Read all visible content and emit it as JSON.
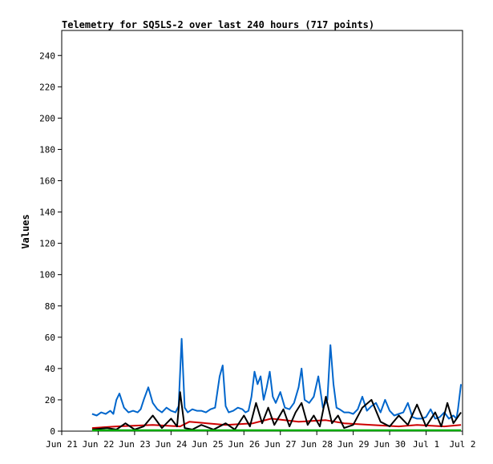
{
  "chart_data": {
    "type": "line",
    "title": "Telemetry for SQ5LS-2 over last 240 hours (717 points)",
    "xlabel": "",
    "ylabel": "Values",
    "ylim": [
      0,
      256
    ],
    "yticks": [
      0,
      20,
      40,
      60,
      80,
      100,
      120,
      140,
      160,
      180,
      200,
      220,
      240
    ],
    "xlim": [
      "2024-06-21T00:00",
      "2024-07-02T00:00"
    ],
    "xticks": [
      {
        "date": "2024-06-21T00:00",
        "label": "Jun 21"
      },
      {
        "date": "2024-06-22T00:00",
        "label": "Jun 22"
      },
      {
        "date": "2024-06-23T00:00",
        "label": "Jun 23"
      },
      {
        "date": "2024-06-24T00:00",
        "label": "Jun 24"
      },
      {
        "date": "2024-06-25T00:00",
        "label": "Jun 25"
      },
      {
        "date": "2024-06-26T00:00",
        "label": "Jun 26"
      },
      {
        "date": "2024-06-27T00:00",
        "label": "Jun 27"
      },
      {
        "date": "2024-06-28T00:00",
        "label": "Jun 28"
      },
      {
        "date": "2024-06-29T00:00",
        "label": "Jun 29"
      },
      {
        "date": "2024-06-30T00:00",
        "label": "Jun 30"
      },
      {
        "date": "2024-07-01T00:00",
        "label": "Jul 1"
      },
      {
        "date": "2024-07-02T00:00",
        "label": "Jul 2"
      }
    ],
    "grid": false,
    "legend": "none",
    "series": [
      {
        "color": "#0066cc",
        "x": [
          "2024-06-21T20:00",
          "2024-06-21T23:00",
          "2024-06-22T02:00",
          "2024-06-22T05:00",
          "2024-06-22T08:00",
          "2024-06-22T10:00",
          "2024-06-22T12:00",
          "2024-06-22T14:00",
          "2024-06-22T17:00",
          "2024-06-22T20:00",
          "2024-06-22T23:00",
          "2024-06-23T02:00",
          "2024-06-23T04:00",
          "2024-06-23T06:00",
          "2024-06-23T09:00",
          "2024-06-23T12:00",
          "2024-06-23T15:00",
          "2024-06-23T18:00",
          "2024-06-23T21:00",
          "2024-06-24T00:00",
          "2024-06-24T03:00",
          "2024-06-24T05:00",
          "2024-06-24T07:00",
          "2024-06-24T09:00",
          "2024-06-24T11:00",
          "2024-06-24T14:00",
          "2024-06-24T17:00",
          "2024-06-24T20:00",
          "2024-06-24T23:00",
          "2024-06-25T02:00",
          "2024-06-25T05:00",
          "2024-06-25T08:00",
          "2024-06-25T10:00",
          "2024-06-25T12:00",
          "2024-06-25T14:00",
          "2024-06-25T17:00",
          "2024-06-25T20:00",
          "2024-06-25T23:00",
          "2024-06-26T01:00",
          "2024-06-26T03:00",
          "2024-06-26T05:00",
          "2024-06-26T07:00",
          "2024-06-26T09:00",
          "2024-06-26T11:00",
          "2024-06-26T13:00",
          "2024-06-26T15:00",
          "2024-06-26T17:00",
          "2024-06-26T19:00",
          "2024-06-26T21:00",
          "2024-06-27T00:00",
          "2024-06-27T03:00",
          "2024-06-27T06:00",
          "2024-06-27T09:00",
          "2024-06-27T12:00",
          "2024-06-27T14:00",
          "2024-06-27T16:00",
          "2024-06-27T19:00",
          "2024-06-27T22:00",
          "2024-06-28T01:00",
          "2024-06-28T04:00",
          "2024-06-28T07:00",
          "2024-06-28T09:00",
          "2024-06-28T11:00",
          "2024-06-28T13:00",
          "2024-06-28T15:00",
          "2024-06-28T18:00",
          "2024-06-28T21:00",
          "2024-06-29T00:00",
          "2024-06-29T03:00",
          "2024-06-29T06:00",
          "2024-06-29T09:00",
          "2024-06-29T12:00",
          "2024-06-29T15:00",
          "2024-06-29T18:00",
          "2024-06-29T21:00",
          "2024-06-30T00:00",
          "2024-06-30T03:00",
          "2024-06-30T06:00",
          "2024-06-30T09:00",
          "2024-06-30T12:00",
          "2024-06-30T15:00",
          "2024-06-30T18:00",
          "2024-06-30T21:00",
          "2024-07-01T00:00",
          "2024-07-01T03:00",
          "2024-07-01T06:00",
          "2024-07-01T09:00",
          "2024-07-01T12:00",
          "2024-07-01T15:00",
          "2024-07-01T18:00",
          "2024-07-01T20:00",
          "2024-07-01T21:00",
          "2024-07-01T23:00"
        ],
        "values": [
          11,
          10,
          12,
          11,
          13,
          11,
          20,
          24,
          15,
          12,
          13,
          12,
          14,
          20,
          28,
          18,
          14,
          12,
          15,
          13,
          12,
          16,
          59,
          15,
          12,
          14,
          13,
          13,
          12,
          14,
          15,
          35,
          42,
          16,
          12,
          13,
          15,
          14,
          12,
          13,
          22,
          38,
          30,
          35,
          20,
          28,
          38,
          22,
          18,
          25,
          15,
          14,
          18,
          28,
          40,
          20,
          18,
          22,
          35,
          15,
          20,
          55,
          30,
          15,
          14,
          12,
          12,
          11,
          14,
          22,
          13,
          16,
          18,
          12,
          20,
          13,
          10,
          11,
          12,
          18,
          9,
          8,
          8,
          9,
          14,
          8,
          9,
          12,
          8,
          10,
          8,
          14,
          30
        ]
      },
      {
        "color": "#cc0000",
        "x": [
          "2024-06-21T20:00",
          "2024-06-22T12:00",
          "2024-06-23T12:00",
          "2024-06-24T06:00",
          "2024-06-24T12:00",
          "2024-06-25T12:00",
          "2024-06-26T06:00",
          "2024-06-26T18:00",
          "2024-06-27T12:00",
          "2024-06-28T06:00",
          "2024-06-28T18:00",
          "2024-06-29T12:00",
          "2024-06-30T06:00",
          "2024-06-30T18:00",
          "2024-07-01T12:00",
          "2024-07-01T23:00"
        ],
        "values": [
          2,
          3,
          4,
          3,
          6,
          4,
          5,
          8,
          6,
          7,
          5,
          4,
          3,
          4,
          3,
          4
        ]
      },
      {
        "color": "#000000",
        "x": [
          "2024-06-21T20:00",
          "2024-06-22T06:00",
          "2024-06-22T12:00",
          "2024-06-22T18:00",
          "2024-06-23T00:00",
          "2024-06-23T06:00",
          "2024-06-23T12:00",
          "2024-06-23T18:00",
          "2024-06-24T00:00",
          "2024-06-24T04:00",
          "2024-06-24T06:00",
          "2024-06-24T09:00",
          "2024-06-24T14:00",
          "2024-06-24T20:00",
          "2024-06-25T04:00",
          "2024-06-25T12:00",
          "2024-06-25T18:00",
          "2024-06-26T00:00",
          "2024-06-26T04:00",
          "2024-06-26T08:00",
          "2024-06-26T12:00",
          "2024-06-26T16:00",
          "2024-06-26T20:00",
          "2024-06-27T02:00",
          "2024-06-27T06:00",
          "2024-06-27T10:00",
          "2024-06-27T14:00",
          "2024-06-27T18:00",
          "2024-06-27T22:00",
          "2024-06-28T02:00",
          "2024-06-28T06:00",
          "2024-06-28T10:00",
          "2024-06-28T14:00",
          "2024-06-28T18:00",
          "2024-06-29T00:00",
          "2024-06-29T06:00",
          "2024-06-29T12:00",
          "2024-06-29T18:00",
          "2024-06-30T00:00",
          "2024-06-30T06:00",
          "2024-06-30T12:00",
          "2024-06-30T18:00",
          "2024-07-01T00:00",
          "2024-07-01T06:00",
          "2024-07-01T10:00",
          "2024-07-01T14:00",
          "2024-07-01T18:00",
          "2024-07-01T23:00"
        ],
        "values": [
          1,
          2,
          1,
          5,
          1,
          3,
          10,
          2,
          8,
          3,
          25,
          2,
          1,
          4,
          1,
          5,
          1,
          10,
          3,
          18,
          5,
          15,
          4,
          14,
          3,
          12,
          18,
          4,
          10,
          3,
          22,
          5,
          10,
          2,
          4,
          15,
          20,
          6,
          3,
          10,
          4,
          17,
          3,
          12,
          3,
          18,
          5,
          12
        ]
      },
      {
        "color": "#00aa00",
        "x": [
          "2024-06-21T20:00",
          "2024-07-01T23:00"
        ],
        "values": [
          0.5,
          0.5
        ]
      }
    ]
  }
}
